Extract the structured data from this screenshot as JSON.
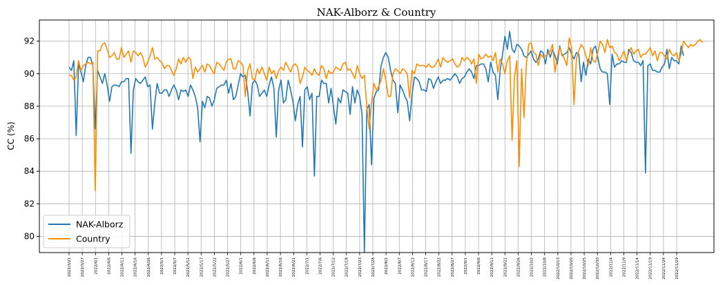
{
  "chart_data": {
    "type": "line",
    "title": "NAK-Alborz & Country",
    "xlabel": "",
    "ylabel": "CC (%)",
    "ylim": [
      79,
      93.3
    ],
    "yticks": [
      80,
      82,
      84,
      86,
      88,
      90,
      92
    ],
    "grid": true,
    "legend_position": "lower-left",
    "x_tick_labels": [
      "2022/3/21",
      "2022/3/27",
      "2022/4/1",
      "2022/4/6",
      "2022/4/11",
      "2022/4/16",
      "2022/4/26",
      "2022/5/1",
      "2022/5/7",
      "2022/5/12",
      "2022/5/17",
      "2022/5/22",
      "2022/5/27",
      "2022/6/1",
      "2022/6/6",
      "2022/6/11",
      "2022/6/16",
      "2022/6/21",
      "2022/7/1",
      "2022/7/6",
      "2022/7/12",
      "2022/7/18",
      "2022/7/23",
      "2022/7/28",
      "2022/8/2",
      "2022/8/7",
      "2022/8/12",
      "2022/8/17",
      "2022/8/22",
      "2022/8/27",
      "2022/9/1",
      "2022/9/6",
      "2022/9/11",
      "2022/9/21",
      "2022/9/26",
      "2022/10/2",
      "2022/10/8",
      "2022/10/13",
      "2022/10/20",
      "2022/10/25",
      "2022/10/30",
      "2022/11/4",
      "2022/11/9",
      "2022/11/14",
      "2022/11/19",
      "2022/11/24",
      "2022/11/29"
    ],
    "series": [
      {
        "name": "NAK-Alborz",
        "color": "#1f77b4",
        "values": [
          90.4,
          90.2,
          90.8,
          86.2,
          90.6,
          90.1,
          89.5,
          90.5,
          91.0,
          91.0,
          90.5,
          86.6,
          90.2,
          89.8,
          89.4,
          90.0,
          89.3,
          88.3,
          89.2,
          89.3,
          89.3,
          89.2,
          89.5,
          89.5,
          89.7,
          89.7,
          85.1,
          89.0,
          89.7,
          89.5,
          89.4,
          89.6,
          89.8,
          89.2,
          89.3,
          86.6,
          88.2,
          89.4,
          88.8,
          88.8,
          89.0,
          89.0,
          88.6,
          89.0,
          89.3,
          89.0,
          88.4,
          89.0,
          88.9,
          89.0,
          88.6,
          89.3,
          89.0,
          88.6,
          87.9,
          85.8,
          88.3,
          87.9,
          88.6,
          88.5,
          88.0,
          88.4,
          89.1,
          89.2,
          89.3,
          89.3,
          89.6,
          88.8,
          89.4,
          88.4,
          88.6,
          89.3,
          90.0,
          89.8,
          89.9,
          88.9,
          87.4,
          89.4,
          89.6,
          89.3,
          88.6,
          88.8,
          89.0,
          88.6,
          89.3,
          89.8,
          89.1,
          86.1,
          89.0,
          89.6,
          88.2,
          88.4,
          89.6,
          89.0,
          88.3,
          87.1,
          88.1,
          88.6,
          85.5,
          89.0,
          89.2,
          88.4,
          88.8,
          83.7,
          88.6,
          88.6,
          89.6,
          89.4,
          89.4,
          88.2,
          89.1,
          88.0,
          86.9,
          88.5,
          88.2,
          89.0,
          88.9,
          88.8,
          87.5,
          89.2,
          88.2,
          89.0,
          88.6,
          87.5,
          79.0,
          87.8,
          88.1,
          84.4,
          88.5,
          88.9,
          89.0,
          90.5,
          91.0,
          91.3,
          91.0,
          90.2,
          89.6,
          89.4,
          87.6,
          89.3,
          89.0,
          88.6,
          88.3,
          87.1,
          88.7,
          89.8,
          89.7,
          89.5,
          89.0,
          89.0,
          88.9,
          89.7,
          89.6,
          89.1,
          89.5,
          89.8,
          89.4,
          89.6,
          89.6,
          89.7,
          89.6,
          89.8,
          90.0,
          89.8,
          89.4,
          89.7,
          89.8,
          90.1,
          90.3,
          90.1,
          89.7,
          90.5,
          90.5,
          90.6,
          90.6,
          90.3,
          89.5,
          90.7,
          90.1,
          89.9,
          88.4,
          90.2,
          91.2,
          92.3,
          91.5,
          92.6,
          91.5,
          91.3,
          91.8,
          91.7,
          91.5,
          91.1,
          91.0,
          91.2,
          91.4,
          90.9,
          90.7,
          90.9,
          91.4,
          91.3,
          90.6,
          91.5,
          91.0,
          91.5,
          91.1,
          90.6,
          91.7,
          91.1,
          91.2,
          91.3,
          91.6,
          91.2,
          90.9,
          91.3,
          91.2,
          89.5,
          90.7,
          89.9,
          90.9,
          90.6,
          91.5,
          91.7,
          91.0,
          90.3,
          90.1,
          90.1,
          90.0,
          88.1,
          91.2,
          90.4,
          90.6,
          90.6,
          90.8,
          90.7,
          90.7,
          91.5,
          91.3,
          90.8,
          90.7,
          90.7,
          90.5,
          90.8,
          83.9,
          90.5,
          90.6,
          90.2,
          90.2,
          90.1,
          90.1,
          90.4,
          90.6,
          91.5,
          90.3,
          91.0,
          90.8,
          90.8,
          90.6,
          91.7,
          91.1
        ]
      },
      {
        "name": "Country",
        "color": "#ff8c00",
        "values": [
          89.9,
          89.9,
          89.6,
          89.8,
          90.8,
          90.2,
          90.5,
          90.6,
          90.7,
          90.6,
          90.7,
          82.8,
          91.4,
          91.4,
          91.8,
          91.9,
          91.5,
          91.0,
          91.1,
          91.3,
          90.9,
          90.9,
          91.6,
          91.0,
          91.2,
          91.4,
          90.7,
          91.4,
          91.3,
          91.1,
          91.3,
          91.0,
          90.4,
          90.7,
          91.1,
          91.6,
          90.9,
          91.0,
          90.8,
          90.7,
          90.3,
          90.5,
          90.5,
          90.2,
          89.9,
          90.3,
          90.9,
          90.6,
          91.0,
          90.7,
          91.0,
          90.9,
          89.7,
          90.4,
          90.1,
          90.3,
          90.5,
          90.1,
          90.6,
          90.5,
          90.2,
          90.0,
          90.7,
          90.6,
          90.4,
          90.2,
          90.7,
          90.9,
          90.9,
          90.3,
          90.3,
          90.8,
          90.7,
          90.5,
          88.6,
          90.2,
          90.6,
          89.7,
          89.6,
          90.3,
          90.0,
          90.4,
          90.0,
          89.6,
          90.4,
          90.0,
          90.2,
          89.7,
          90.2,
          90.4,
          90.2,
          90.7,
          90.4,
          90.1,
          90.5,
          90.6,
          90.4,
          89.4,
          89.8,
          90.4,
          90.2,
          90.1,
          89.9,
          90.3,
          90.0,
          89.9,
          90.5,
          90.3,
          89.7,
          90.2,
          90.0,
          90.1,
          90.4,
          90.3,
          90.2,
          90.6,
          90.7,
          90.2,
          90.3,
          90.0,
          89.7,
          90.5,
          90.0,
          89.7,
          89.9,
          88.0,
          86.6,
          88.2,
          89.4,
          89.0,
          89.2,
          89.6,
          90.3,
          89.6,
          88.6,
          88.6,
          90.0,
          90.3,
          90.2,
          90.0,
          90.3,
          90.2,
          90.0,
          88.5,
          90.2,
          90.0,
          90.6,
          90.5,
          90.5,
          90.5,
          90.4,
          90.6,
          90.4,
          90.4,
          90.6,
          90.9,
          90.4,
          91.0,
          90.8,
          90.7,
          90.8,
          90.9,
          90.6,
          90.4,
          90.5,
          91.0,
          90.8,
          91.0,
          90.9,
          90.6,
          90.9,
          89.4,
          91.2,
          90.9,
          91.0,
          91.2,
          91.0,
          91.1,
          90.8,
          91.3,
          90.1,
          90.9,
          90.6,
          90.0,
          90.8,
          91.1,
          85.9,
          89.8,
          90.8,
          84.3,
          90.3,
          87.3,
          90.6,
          91.8,
          91.9,
          91.3,
          91.2,
          90.5,
          91.2,
          91.0,
          91.1,
          91.2,
          91.4,
          91.8,
          90.1,
          91.0,
          91.6,
          91.2,
          90.9,
          90.5,
          92.2,
          91.6,
          88.1,
          90.9,
          91.4,
          91.8,
          91.6,
          91.1,
          90.5,
          91.6,
          90.8,
          90.7,
          91.3,
          92.0,
          91.8,
          91.3,
          92.1,
          91.6,
          91.7,
          91.3,
          91.2,
          90.8,
          91.1,
          91.4,
          90.8,
          91.3,
          91.6,
          91.2,
          91.4,
          91.5,
          91.0,
          91.2,
          91.2,
          91.4,
          91.6,
          91.1,
          91.4,
          90.8,
          91.3,
          91.3,
          91.1,
          90.9,
          91.5,
          91.2,
          91.1,
          91.3,
          90.8,
          91.2,
          92.0,
          91.8,
          91.6,
          91.8,
          91.7,
          91.8,
          92.0,
          92.1,
          91.9
        ]
      }
    ]
  }
}
